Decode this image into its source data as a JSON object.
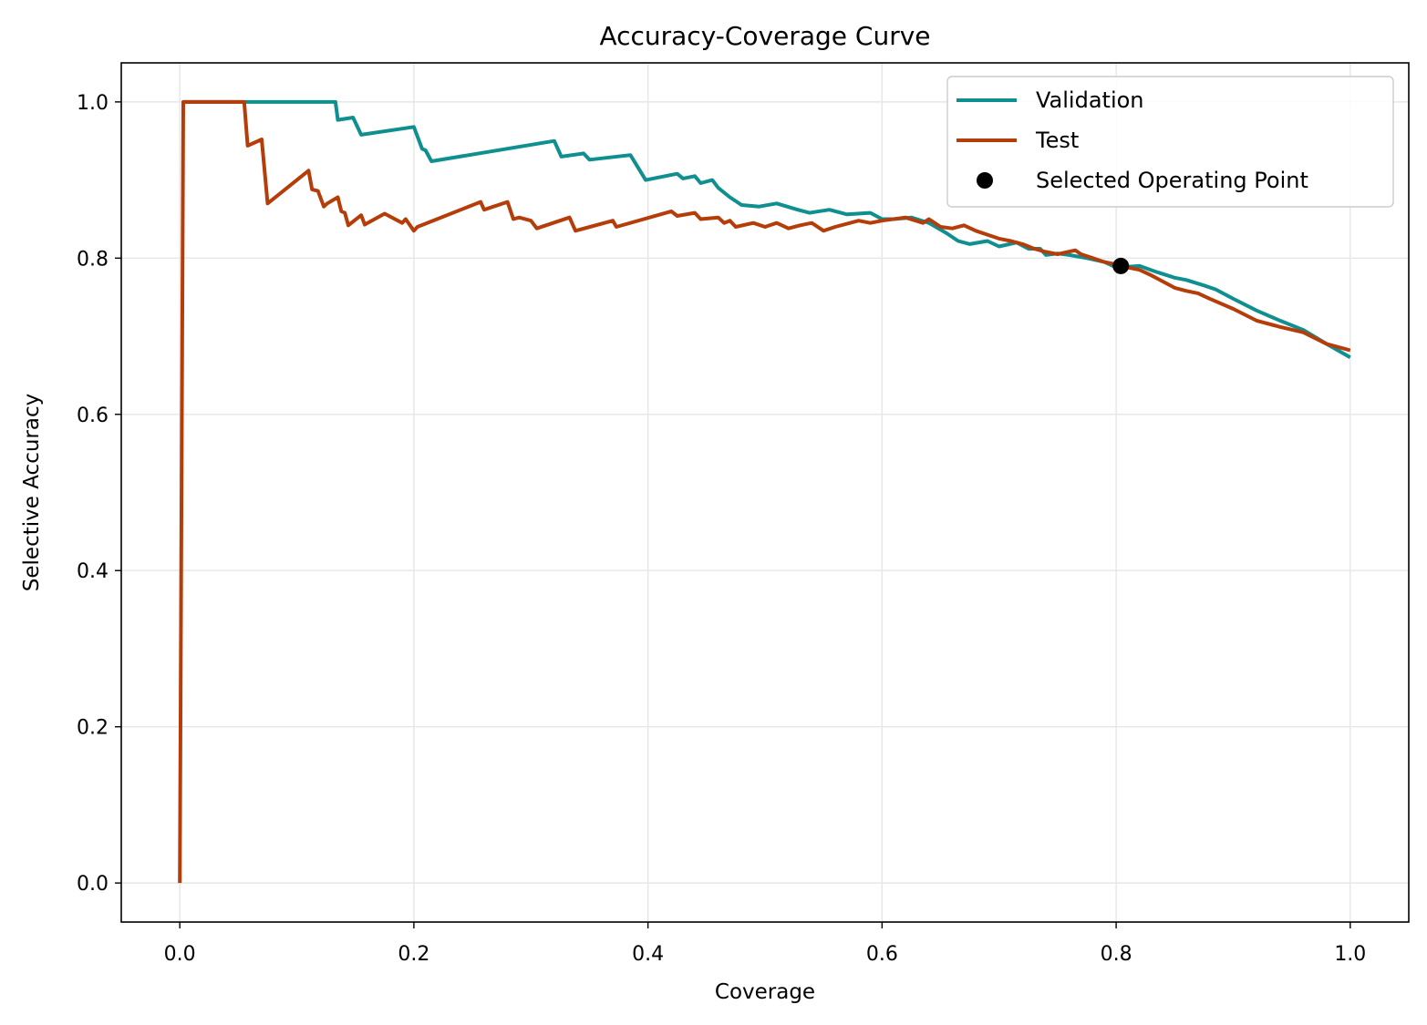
{
  "chart_data": {
    "type": "line",
    "title": "Accuracy-Coverage Curve",
    "xlabel": "Coverage",
    "ylabel": "Selective Accuracy",
    "xlim": [
      -0.05,
      1.05
    ],
    "ylim": [
      -0.05,
      1.05
    ],
    "xticks": [
      "0.0",
      "0.2",
      "0.4",
      "0.6",
      "0.8",
      "1.0"
    ],
    "yticks": [
      "0.0",
      "0.2",
      "0.4",
      "0.6",
      "0.8",
      "1.0"
    ],
    "grid": true,
    "legend_position": "top-right",
    "series": [
      {
        "name": "Validation",
        "color": "#0f8f8f",
        "x": [
          0.003,
          0.133,
          0.135,
          0.148,
          0.155,
          0.2,
          0.207,
          0.21,
          0.215,
          0.32,
          0.326,
          0.345,
          0.35,
          0.385,
          0.398,
          0.425,
          0.43,
          0.44,
          0.445,
          0.455,
          0.46,
          0.47,
          0.48,
          0.495,
          0.51,
          0.528,
          0.538,
          0.555,
          0.57,
          0.59,
          0.6,
          0.61,
          0.625,
          0.64,
          0.655,
          0.665,
          0.675,
          0.69,
          0.7,
          0.715,
          0.725,
          0.735,
          0.74,
          0.75,
          0.76,
          0.775,
          0.79,
          0.8,
          0.82,
          0.835,
          0.85,
          0.86,
          0.875,
          0.885,
          0.9,
          0.92,
          0.94,
          0.96,
          0.98,
          1.0
        ],
        "y": [
          1.0,
          1.0,
          0.977,
          0.98,
          0.958,
          0.968,
          0.94,
          0.938,
          0.924,
          0.95,
          0.93,
          0.934,
          0.926,
          0.932,
          0.9,
          0.908,
          0.902,
          0.905,
          0.896,
          0.9,
          0.89,
          0.878,
          0.868,
          0.866,
          0.87,
          0.862,
          0.858,
          0.862,
          0.856,
          0.858,
          0.85,
          0.85,
          0.852,
          0.845,
          0.832,
          0.822,
          0.818,
          0.822,
          0.815,
          0.82,
          0.812,
          0.812,
          0.804,
          0.806,
          0.804,
          0.8,
          0.795,
          0.788,
          0.79,
          0.782,
          0.775,
          0.772,
          0.765,
          0.76,
          0.748,
          0.733,
          0.72,
          0.708,
          0.69,
          0.673
        ]
      },
      {
        "name": "Test",
        "color": "#b53d0a",
        "x": [
          0.0,
          0.003,
          0.055,
          0.058,
          0.07,
          0.075,
          0.11,
          0.113,
          0.118,
          0.123,
          0.126,
          0.135,
          0.138,
          0.141,
          0.144,
          0.155,
          0.158,
          0.175,
          0.19,
          0.193,
          0.2,
          0.203,
          0.257,
          0.26,
          0.28,
          0.285,
          0.29,
          0.3,
          0.305,
          0.333,
          0.338,
          0.37,
          0.373,
          0.42,
          0.425,
          0.44,
          0.445,
          0.46,
          0.465,
          0.47,
          0.475,
          0.49,
          0.5,
          0.51,
          0.52,
          0.53,
          0.54,
          0.55,
          0.56,
          0.58,
          0.59,
          0.6,
          0.62,
          0.635,
          0.64,
          0.645,
          0.65,
          0.66,
          0.67,
          0.68,
          0.69,
          0.7,
          0.71,
          0.72,
          0.73,
          0.74,
          0.75,
          0.765,
          0.77,
          0.78,
          0.79,
          0.8,
          0.81,
          0.82,
          0.83,
          0.84,
          0.85,
          0.86,
          0.87,
          0.88,
          0.9,
          0.92,
          0.94,
          0.96,
          0.98,
          1.0
        ],
        "y": [
          0.0,
          1.0,
          1.0,
          0.944,
          0.952,
          0.87,
          0.912,
          0.888,
          0.886,
          0.866,
          0.87,
          0.878,
          0.86,
          0.858,
          0.842,
          0.855,
          0.843,
          0.857,
          0.845,
          0.85,
          0.835,
          0.84,
          0.872,
          0.862,
          0.872,
          0.85,
          0.852,
          0.848,
          0.838,
          0.852,
          0.835,
          0.848,
          0.84,
          0.86,
          0.854,
          0.858,
          0.85,
          0.852,
          0.845,
          0.848,
          0.84,
          0.845,
          0.84,
          0.845,
          0.838,
          0.842,
          0.845,
          0.835,
          0.84,
          0.848,
          0.845,
          0.848,
          0.852,
          0.845,
          0.85,
          0.845,
          0.84,
          0.838,
          0.842,
          0.835,
          0.83,
          0.825,
          0.822,
          0.818,
          0.812,
          0.808,
          0.805,
          0.81,
          0.805,
          0.8,
          0.795,
          0.792,
          0.788,
          0.785,
          0.778,
          0.77,
          0.762,
          0.758,
          0.755,
          0.748,
          0.735,
          0.72,
          0.712,
          0.705,
          0.69,
          0.682
        ]
      }
    ],
    "points": [
      {
        "name": "Selected Operating Point",
        "x": 0.804,
        "y": 0.79,
        "color": "#000000"
      }
    ]
  }
}
